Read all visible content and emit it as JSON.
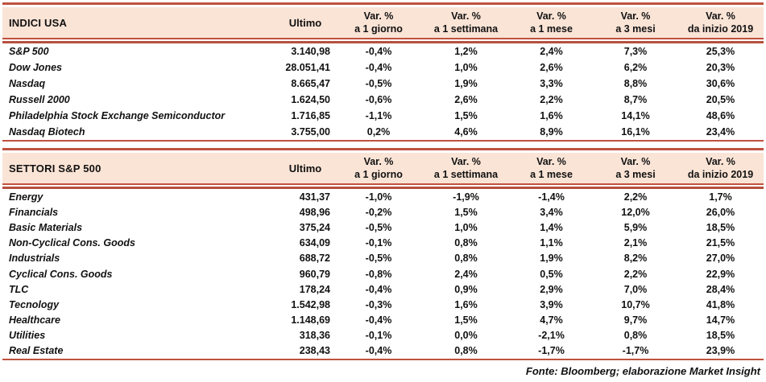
{
  "columns": {
    "ultimo": "Ultimo",
    "var_cols": [
      {
        "line1": "Var. %",
        "line2": "a 1 giorno"
      },
      {
        "line1": "Var. %",
        "line2": "a 1 settimana"
      },
      {
        "line1": "Var. %",
        "line2": "a 1 mese"
      },
      {
        "line1": "Var. %",
        "line2": "a 3 mesi"
      },
      {
        "line1": "Var. %",
        "line2": "da inizio 2019"
      }
    ]
  },
  "tables": [
    {
      "title": "INDICI USA",
      "rows": [
        {
          "label": "S&P 500",
          "ultimo": "3.140,98",
          "vars": [
            "-0,4%",
            "1,2%",
            "2,4%",
            "7,3%",
            "25,3%"
          ]
        },
        {
          "label": "Dow Jones",
          "ultimo": "28.051,41",
          "vars": [
            "-0,4%",
            "1,0%",
            "2,6%",
            "6,2%",
            "20,3%"
          ]
        },
        {
          "label": "Nasdaq",
          "ultimo": "8.665,47",
          "vars": [
            "-0,5%",
            "1,9%",
            "3,3%",
            "8,8%",
            "30,6%"
          ]
        },
        {
          "label": "Russell 2000",
          "ultimo": "1.624,50",
          "vars": [
            "-0,6%",
            "2,6%",
            "2,2%",
            "8,7%",
            "20,5%"
          ]
        },
        {
          "label": "Philadelphia Stock Exchange Semiconductor",
          "ultimo": "1.716,85",
          "vars": [
            "-1,1%",
            "1,5%",
            "1,6%",
            "14,1%",
            "48,6%"
          ]
        },
        {
          "label": "Nasdaq Biotech",
          "ultimo": "3.755,00",
          "vars": [
            "0,2%",
            "4,6%",
            "8,9%",
            "16,1%",
            "23,4%"
          ]
        }
      ]
    },
    {
      "title": "SETTORI S&P 500",
      "rows": [
        {
          "label": "Energy",
          "ultimo": "431,37",
          "vars": [
            "-1,0%",
            "-1,9%",
            "-1,4%",
            "2,2%",
            "1,7%"
          ]
        },
        {
          "label": "Financials",
          "ultimo": "498,96",
          "vars": [
            "-0,2%",
            "1,5%",
            "3,4%",
            "12,0%",
            "26,0%"
          ]
        },
        {
          "label": "Basic Materials",
          "ultimo": "375,24",
          "vars": [
            "-0,5%",
            "1,0%",
            "1,4%",
            "5,9%",
            "18,5%"
          ]
        },
        {
          "label": "Non-Cyclical Cons. Goods",
          "ultimo": "634,09",
          "vars": [
            "-0,1%",
            "0,8%",
            "1,1%",
            "2,1%",
            "21,5%"
          ]
        },
        {
          "label": "Industrials",
          "ultimo": "688,72",
          "vars": [
            "-0,5%",
            "0,8%",
            "1,9%",
            "8,2%",
            "27,0%"
          ]
        },
        {
          "label": "Cyclical Cons. Goods",
          "ultimo": "960,79",
          "vars": [
            "-0,8%",
            "2,4%",
            "0,5%",
            "2,2%",
            "22,9%"
          ]
        },
        {
          "label": "TLC",
          "ultimo": "178,24",
          "vars": [
            "-0,4%",
            "0,9%",
            "2,9%",
            "7,0%",
            "28,4%"
          ]
        },
        {
          "label": "Tecnology",
          "ultimo": "1.542,98",
          "vars": [
            "-0,3%",
            "1,6%",
            "3,9%",
            "10,7%",
            "41,8%"
          ]
        },
        {
          "label": "Healthcare",
          "ultimo": "1.148,69",
          "vars": [
            "-0,4%",
            "1,5%",
            "4,7%",
            "9,7%",
            "14,7%"
          ]
        },
        {
          "label": "Utilities",
          "ultimo": "318,36",
          "vars": [
            "-0,1%",
            "0,0%",
            "-2,1%",
            "0,8%",
            "18,5%"
          ]
        },
        {
          "label": "Real Estate",
          "ultimo": "238,43",
          "vars": [
            "-0,4%",
            "0,8%",
            "-1,7%",
            "-1,7%",
            "23,9%"
          ]
        }
      ]
    }
  ],
  "footer": "Fonte: Bloomberg; elaborazione Market Insight",
  "colors": {
    "rule_red": "#c0523e",
    "rule_red_dark": "#b5503e",
    "band_peach": "#fae4d6",
    "text": "#111111"
  }
}
